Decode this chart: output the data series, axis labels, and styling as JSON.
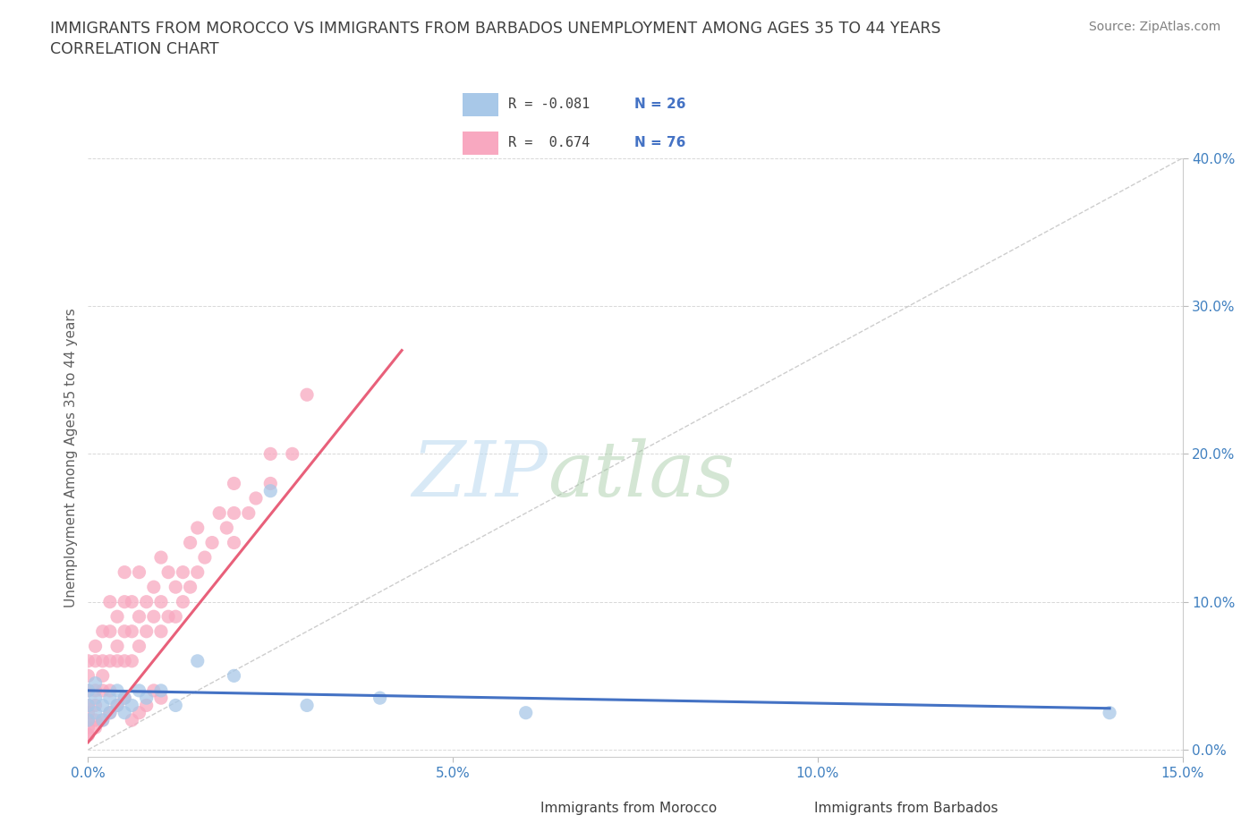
{
  "title_line1": "IMMIGRANTS FROM MOROCCO VS IMMIGRANTS FROM BARBADOS UNEMPLOYMENT AMONG AGES 35 TO 44 YEARS",
  "title_line2": "CORRELATION CHART",
  "source": "Source: ZipAtlas.com",
  "ylabel": "Unemployment Among Ages 35 to 44 years",
  "xlim": [
    0.0,
    0.15
  ],
  "ylim": [
    -0.005,
    0.4
  ],
  "xticks": [
    0.0,
    0.05,
    0.1,
    0.15
  ],
  "xticklabels": [
    "0.0%",
    "5.0%",
    "10.0%",
    "15.0%"
  ],
  "yticks_right": [
    0.0,
    0.1,
    0.2,
    0.3,
    0.4
  ],
  "yticklabels_right": [
    "0.0%",
    "10.0%",
    "20.0%",
    "30.0%",
    "40.0%"
  ],
  "morocco_color": "#a8c8e8",
  "barbados_color": "#f8a8c0",
  "morocco_line_color": "#4472c4",
  "barbados_line_color": "#e8607a",
  "ref_line_color": "#c8c8c8",
  "watermark_zip": "ZIP",
  "watermark_atlas": "atlas",
  "background_color": "#ffffff",
  "grid_color": "#d8d8d8",
  "title_color": "#404040",
  "tick_color": "#4080c0",
  "source_color": "#808080",
  "legend_R_color": "#404040",
  "legend_N_color": "#4472c4",
  "morocco_scatter_x": [
    0.0,
    0.0,
    0.0,
    0.001,
    0.001,
    0.001,
    0.002,
    0.002,
    0.003,
    0.003,
    0.004,
    0.004,
    0.005,
    0.005,
    0.006,
    0.007,
    0.008,
    0.01,
    0.012,
    0.015,
    0.02,
    0.025,
    0.03,
    0.04,
    0.06,
    0.14
  ],
  "morocco_scatter_y": [
    0.03,
    0.04,
    0.02,
    0.035,
    0.025,
    0.045,
    0.03,
    0.02,
    0.035,
    0.025,
    0.04,
    0.03,
    0.035,
    0.025,
    0.03,
    0.04,
    0.035,
    0.04,
    0.03,
    0.06,
    0.05,
    0.175,
    0.03,
    0.035,
    0.025,
    0.025
  ],
  "barbados_scatter_x": [
    0.0,
    0.0,
    0.0,
    0.0,
    0.0,
    0.0,
    0.0,
    0.0,
    0.001,
    0.001,
    0.001,
    0.001,
    0.001,
    0.002,
    0.002,
    0.002,
    0.002,
    0.003,
    0.003,
    0.003,
    0.003,
    0.004,
    0.004,
    0.004,
    0.005,
    0.005,
    0.005,
    0.005,
    0.006,
    0.006,
    0.006,
    0.007,
    0.007,
    0.007,
    0.008,
    0.008,
    0.009,
    0.009,
    0.01,
    0.01,
    0.01,
    0.011,
    0.011,
    0.012,
    0.012,
    0.013,
    0.013,
    0.014,
    0.014,
    0.015,
    0.015,
    0.016,
    0.017,
    0.018,
    0.019,
    0.02,
    0.02,
    0.02,
    0.022,
    0.023,
    0.025,
    0.025,
    0.028,
    0.03,
    0.0,
    0.001,
    0.002,
    0.003,
    0.004,
    0.005,
    0.006,
    0.007,
    0.008,
    0.009,
    0.01
  ],
  "barbados_scatter_y": [
    0.03,
    0.02,
    0.01,
    0.06,
    0.05,
    0.04,
    0.015,
    0.025,
    0.04,
    0.06,
    0.03,
    0.02,
    0.07,
    0.05,
    0.04,
    0.06,
    0.08,
    0.06,
    0.08,
    0.04,
    0.1,
    0.06,
    0.09,
    0.07,
    0.08,
    0.06,
    0.1,
    0.12,
    0.08,
    0.1,
    0.06,
    0.09,
    0.07,
    0.12,
    0.1,
    0.08,
    0.09,
    0.11,
    0.1,
    0.08,
    0.13,
    0.09,
    0.12,
    0.11,
    0.09,
    0.12,
    0.1,
    0.11,
    0.14,
    0.12,
    0.15,
    0.13,
    0.14,
    0.16,
    0.15,
    0.14,
    0.16,
    0.18,
    0.16,
    0.17,
    0.18,
    0.2,
    0.2,
    0.24,
    0.01,
    0.015,
    0.02,
    0.025,
    0.03,
    0.035,
    0.02,
    0.025,
    0.03,
    0.04,
    0.035
  ],
  "morocco_line_x0": 0.0,
  "morocco_line_x1": 0.14,
  "morocco_line_y0": 0.04,
  "morocco_line_y1": 0.028,
  "barbados_line_x0": 0.0,
  "barbados_line_x1": 0.043,
  "barbados_line_y0": 0.005,
  "barbados_line_y1": 0.27
}
